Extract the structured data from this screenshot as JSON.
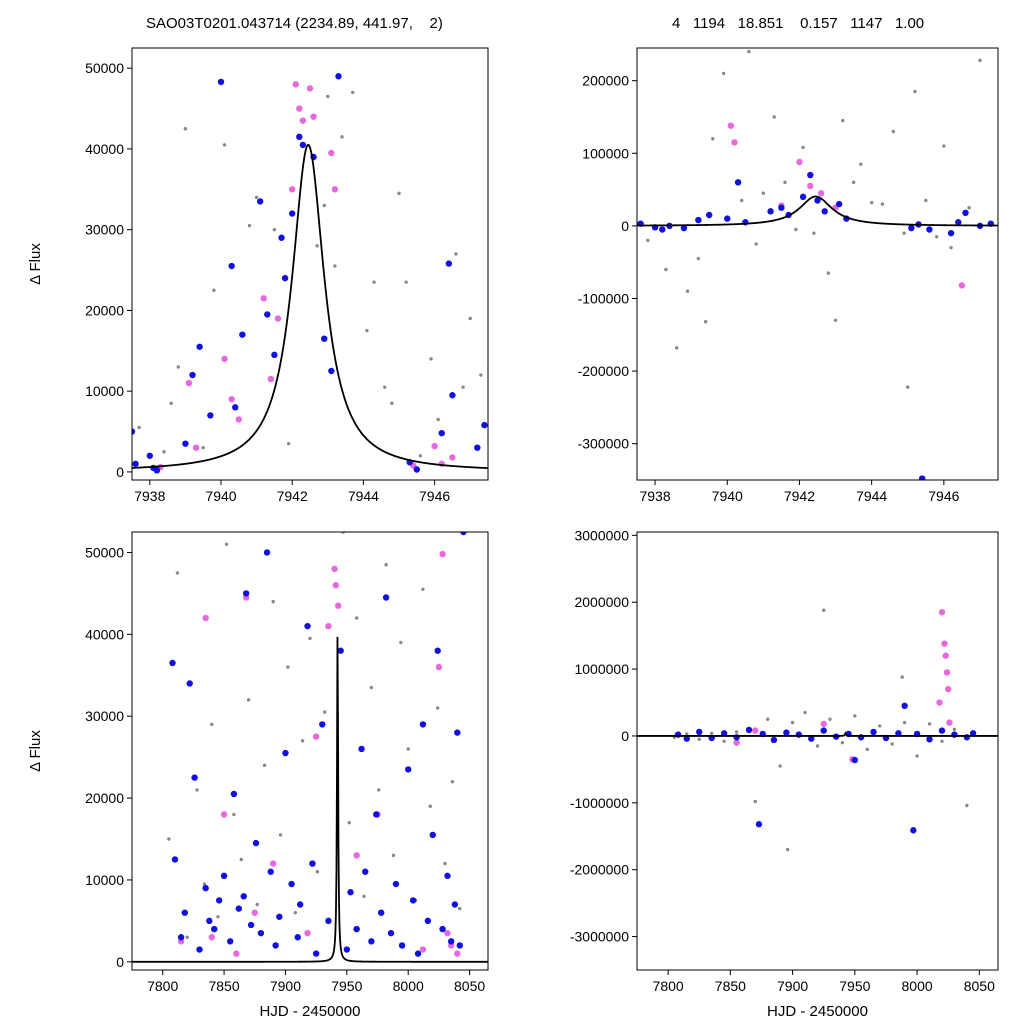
{
  "header": {
    "left": "SAO03T0201.043714 (2234.89, 441.97,    2)",
    "right": "4   1194   18.851    0.157   1147   1.00"
  },
  "colors": {
    "blue": "#1010e0",
    "magenta": "#e868e0",
    "gray": "#888888",
    "model": "#000000"
  },
  "chart_data": [
    {
      "id": "top-left",
      "type": "scatter",
      "title": "",
      "xlabel": "",
      "ylabel": "Δ Flux",
      "xlim": [
        7937.5,
        7947.5
      ],
      "ylim": [
        -1000,
        52500
      ],
      "xticks": [
        "7938",
        "7940",
        "7942",
        "7944",
        "7946"
      ],
      "yticks": [
        "0",
        "10000",
        "20000",
        "30000",
        "40000",
        "50000"
      ],
      "grid": false,
      "model": {
        "type": "lorentzian",
        "center": 7942.45,
        "amplitude": 40500,
        "fwhm": 1.1
      },
      "series": [
        {
          "color": "blue",
          "x": [
            7937.5,
            7937.6,
            7938.0,
            7938.1,
            7938.2,
            7939.0,
            7939.2,
            7939.4,
            7939.7,
            7940.0,
            7940.3,
            7940.4,
            7940.6,
            7941.1,
            7941.3,
            7941.5,
            7941.7,
            7941.8,
            7942.0,
            7942.2,
            7942.3,
            7942.6,
            7942.9,
            7943.1,
            7943.3,
            7945.3,
            7945.5,
            7946.2,
            7946.4,
            7946.5,
            7947.2,
            7947.4
          ],
          "y": [
            5000,
            1000,
            2000,
            500,
            200,
            3500,
            12000,
            15500,
            7000,
            48300,
            25500,
            8000,
            17000,
            33500,
            19500,
            14500,
            29000,
            24000,
            32000,
            41500,
            40500,
            39000,
            16500,
            12500,
            49000,
            1200,
            300,
            4800,
            25800,
            9500,
            3000,
            5800
          ]
        },
        {
          "color": "magenta",
          "x": [
            7938.2,
            7938.3,
            7939.1,
            7939.3,
            7940.1,
            7940.3,
            7940.5,
            7941.2,
            7941.4,
            7941.6,
            7942.0,
            7942.1,
            7942.2,
            7942.3,
            7942.5,
            7942.6,
            7943.1,
            7943.2,
            7945.4,
            7946.0,
            7946.2,
            7946.5
          ],
          "y": [
            200,
            600,
            11000,
            3000,
            14000,
            9000,
            6500,
            21500,
            11500,
            19000,
            35000,
            48000,
            45000,
            43500,
            47500,
            44000,
            39500,
            35000,
            800,
            3200,
            1000,
            1800
          ]
        },
        {
          "color": "gray",
          "x": [
            7937.7,
            7938.4,
            7938.6,
            7938.8,
            7939.0,
            7939.5,
            7939.8,
            7940.1,
            7940.8,
            7941.0,
            7941.5,
            7941.9,
            7942.7,
            7942.9,
            7943.0,
            7943.2,
            7943.4,
            7943.7,
            7944.1,
            7944.3,
            7944.6,
            7944.8,
            7945.0,
            7945.2,
            7945.6,
            7945.9,
            7946.1,
            7946.6,
            7946.8,
            7947.0,
            7947.3
          ],
          "y": [
            5500,
            2500,
            8500,
            13000,
            42500,
            3000,
            22500,
            40500,
            30500,
            34000,
            30000,
            3500,
            28000,
            33000,
            46500,
            25500,
            41500,
            47000,
            17500,
            23500,
            10500,
            8500,
            34500,
            23500,
            2000,
            14000,
            6500,
            27000,
            10500,
            19000,
            12000
          ]
        }
      ]
    },
    {
      "id": "top-right",
      "type": "scatter",
      "title": "",
      "xlabel": "",
      "ylabel": "",
      "xlim": [
        7937.5,
        7947.5
      ],
      "ylim": [
        -350000,
        245000
      ],
      "xticks": [
        "7938",
        "7940",
        "7942",
        "7944",
        "7946"
      ],
      "yticks": [
        "-300000",
        "-200000",
        "-100000",
        "0",
        "100000",
        "200000"
      ],
      "grid": false,
      "model": {
        "type": "lorentzian",
        "center": 7942.45,
        "amplitude": 40500,
        "fwhm": 1.1
      },
      "series": [
        {
          "color": "blue",
          "x": [
            7937.6,
            7938.0,
            7938.2,
            7938.4,
            7938.8,
            7939.2,
            7939.5,
            7940.0,
            7940.3,
            7940.5,
            7941.2,
            7941.5,
            7941.7,
            7942.1,
            7942.3,
            7942.5,
            7942.7,
            7943.1,
            7943.3,
            7945.1,
            7945.3,
            7945.4,
            7945.6,
            7946.2,
            7946.4,
            7946.6,
            7947.0,
            7947.3
          ],
          "y": [
            3000,
            -2000,
            -5000,
            0,
            -3000,
            8000,
            15000,
            10000,
            60000,
            5000,
            20000,
            25000,
            15000,
            40000,
            70000,
            35000,
            20000,
            30000,
            10000,
            -3000,
            2000,
            -348000,
            -5000,
            -10000,
            5000,
            18000,
            0,
            3000
          ]
        },
        {
          "color": "magenta",
          "x": [
            7940.1,
            7940.2,
            7941.5,
            7942.0,
            7942.3,
            7942.6,
            7943.0,
            7946.5
          ],
          "y": [
            138000,
            115000,
            28000,
            88000,
            55000,
            45000,
            25000,
            -82000
          ]
        },
        {
          "color": "gray",
          "x": [
            7937.8,
            7938.3,
            7938.6,
            7938.9,
            7939.2,
            7939.4,
            7939.6,
            7939.9,
            7940.4,
            7940.6,
            7940.8,
            7941.0,
            7941.3,
            7941.6,
            7941.9,
            7942.1,
            7942.4,
            7942.8,
            7943.0,
            7943.2,
            7943.5,
            7943.7,
            7944.0,
            7944.3,
            7944.6,
            7944.9,
            7945.0,
            7945.2,
            7945.5,
            7945.8,
            7946.0,
            7946.2,
            7946.7,
            7947.0
          ],
          "y": [
            -20000,
            -60000,
            -168000,
            -90000,
            -45000,
            -132000,
            120000,
            210000,
            35000,
            240000,
            -25000,
            45000,
            150000,
            60000,
            -5000,
            108000,
            -10000,
            -65000,
            -130000,
            145000,
            60000,
            85000,
            32000,
            30000,
            130000,
            -10000,
            -222000,
            185000,
            35000,
            -15000,
            110000,
            -30000,
            25000,
            228000
          ]
        }
      ]
    },
    {
      "id": "bottom-left",
      "type": "scatter",
      "title": "",
      "xlabel": "HJD - 2450000",
      "ylabel": "Δ Flux",
      "xlim": [
        7775,
        8065
      ],
      "ylim": [
        -1000,
        52500
      ],
      "xticks": [
        "7800",
        "7850",
        "7900",
        "7950",
        "8000",
        "8050"
      ],
      "yticks": [
        "0",
        "10000",
        "20000",
        "30000",
        "40000",
        "50000"
      ],
      "grid": false,
      "model": {
        "type": "lorentzian",
        "center": 7942.45,
        "amplitude": 40500,
        "fwhm": 1.1
      },
      "series": [
        {
          "color": "blue",
          "x": [
            7808,
            7810,
            7815,
            7818,
            7822,
            7826,
            7830,
            7835,
            7838,
            7842,
            7846,
            7850,
            7855,
            7858,
            7862,
            7866,
            7868,
            7872,
            7876,
            7880,
            7885,
            7888,
            7892,
            7895,
            7900,
            7905,
            7910,
            7912,
            7918,
            7922,
            7925,
            7930,
            7935,
            7945,
            7950,
            7953,
            7958,
            7962,
            7965,
            7970,
            7974,
            7978,
            7982,
            7986,
            7990,
            7995,
            8000,
            8004,
            8008,
            8012,
            8016,
            8020,
            8024,
            8028,
            8032,
            8035,
            8038,
            8040,
            8042,
            8045
          ],
          "y": [
            36500,
            12500,
            3000,
            6000,
            34000,
            22500,
            1500,
            9000,
            5000,
            4000,
            7500,
            10500,
            2500,
            20500,
            6500,
            8000,
            45000,
            4500,
            14500,
            3500,
            50000,
            11000,
            2000,
            5500,
            25500,
            9500,
            3000,
            7000,
            41000,
            12000,
            1000,
            29000,
            5000,
            38000,
            1500,
            8500,
            4000,
            26000,
            11000,
            2500,
            18000,
            6000,
            44500,
            3500,
            9500,
            2000,
            23500,
            7500,
            1000,
            29000,
            5000,
            15500,
            38000,
            4000,
            10500,
            2500,
            7000,
            28000,
            2000,
            52500
          ]
        },
        {
          "color": "magenta",
          "x": [
            7815,
            7835,
            7840,
            7850,
            7860,
            7868,
            7875,
            7890,
            7918,
            7925,
            7935,
            7940,
            7941,
            7943,
            7958,
            7975,
            8012,
            8025,
            8028,
            8032,
            8035,
            8040
          ],
          "y": [
            2500,
            42000,
            3000,
            18000,
            1000,
            44500,
            6000,
            12000,
            3500,
            27500,
            41000,
            48000,
            46000,
            43500,
            13000,
            18000,
            1500,
            36000,
            49800,
            3500,
            2000,
            1000
          ]
        },
        {
          "color": "gray",
          "x": [
            7805,
            7812,
            7820,
            7828,
            7834,
            7840,
            7845,
            7852,
            7858,
            7864,
            7870,
            7877,
            7883,
            7890,
            7896,
            7902,
            7908,
            7914,
            7920,
            7926,
            7932,
            7947,
            7952,
            7958,
            7964,
            7970,
            7976,
            7982,
            7988,
            7994,
            8000,
            8006,
            8012,
            8018,
            8024,
            8030,
            8036,
            8042
          ],
          "y": [
            15000,
            47500,
            3000,
            21000,
            9500,
            29000,
            5500,
            51000,
            18000,
            12500,
            32000,
            7000,
            24000,
            44000,
            15500,
            36000,
            6000,
            27000,
            39500,
            11000,
            30500,
            52500,
            17000,
            42000,
            8000,
            33500,
            21000,
            48500,
            13000,
            39000,
            26000,
            7500,
            45500,
            19000,
            31000,
            12000,
            22000,
            6500
          ]
        }
      ]
    },
    {
      "id": "bottom-right",
      "type": "scatter",
      "title": "",
      "xlabel": "HJD - 2450000",
      "ylabel": "",
      "xlim": [
        7775,
        8065
      ],
      "ylim": [
        -3500000,
        3050000
      ],
      "xticks": [
        "7800",
        "7850",
        "7900",
        "7950",
        "8000",
        "8050"
      ],
      "yticks": [
        "-3000000",
        "-2000000",
        "-1000000",
        "0",
        "1000000",
        "2000000",
        "3000000"
      ],
      "grid": false,
      "model": {
        "type": "lorentzian",
        "center": 7942.45,
        "amplitude": 40500,
        "fwhm": 1.1
      },
      "series": [
        {
          "color": "blue",
          "x": [
            7808,
            7815,
            7825,
            7835,
            7845,
            7855,
            7865,
            7873,
            7876,
            7885,
            7895,
            7905,
            7915,
            7925,
            7935,
            7945,
            7950,
            7955,
            7965,
            7975,
            7985,
            7990,
            7997,
            8000,
            8010,
            8020,
            8030,
            8040,
            8045
          ],
          "y": [
            20000,
            -40000,
            60000,
            -30000,
            40000,
            -20000,
            90000,
            -1320000,
            30000,
            -60000,
            50000,
            20000,
            -40000,
            80000,
            -10000,
            30000,
            -360000,
            -20000,
            60000,
            -30000,
            40000,
            450000,
            -1410000,
            30000,
            -50000,
            80000,
            20000,
            -20000,
            40000
          ]
        },
        {
          "color": "magenta",
          "x": [
            7855,
            7870,
            7925,
            7948,
            8018,
            8020,
            8022,
            8023,
            8024,
            8025,
            8026
          ],
          "y": [
            -100000,
            80000,
            180000,
            -350000,
            500000,
            1850000,
            1380000,
            1200000,
            950000,
            700000,
            200000
          ]
        },
        {
          "color": "gray",
          "x": [
            7805,
            7815,
            7825,
            7835,
            7845,
            7855,
            7866,
            7870,
            7880,
            7890,
            7896,
            7900,
            7910,
            7920,
            7925,
            7930,
            7940,
            7950,
            7960,
            7970,
            7980,
            7988,
            7990,
            8000,
            8010,
            8020,
            8030,
            8040,
            8045
          ],
          "y": [
            -20000,
            30000,
            -50000,
            40000,
            -80000,
            60000,
            100000,
            -980000,
            250000,
            -450000,
            -1700000,
            200000,
            350000,
            -150000,
            1880000,
            250000,
            -100000,
            300000,
            -200000,
            150000,
            -120000,
            880000,
            200000,
            -300000,
            180000,
            -80000,
            100000,
            -1040000,
            60000
          ]
        }
      ]
    }
  ]
}
